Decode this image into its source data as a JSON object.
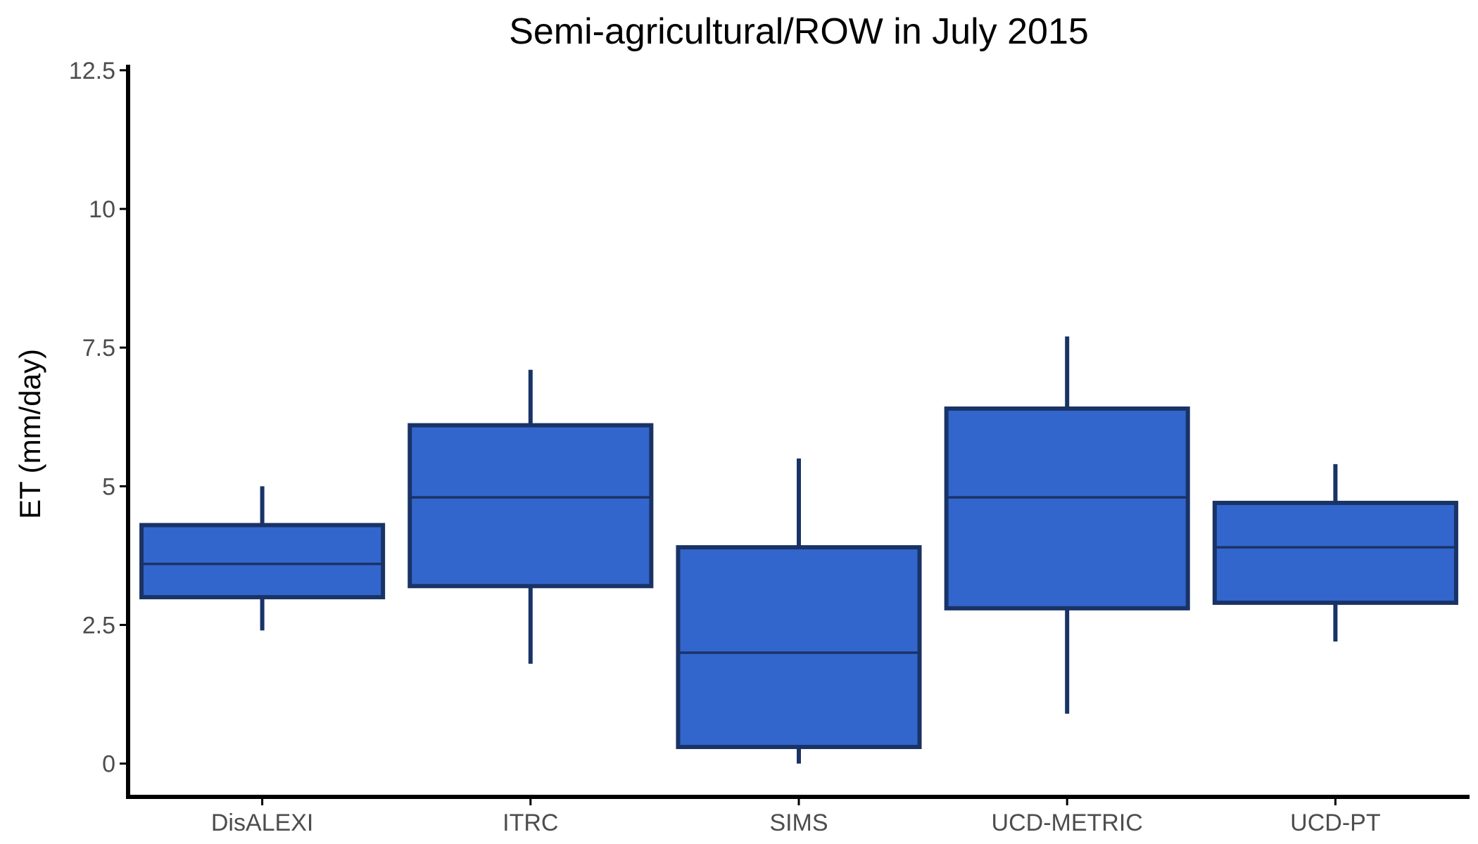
{
  "chart_data": {
    "type": "boxplot",
    "title": "Semi-agricultural/ROW in July 2015",
    "xlabel": "",
    "ylabel": "ET (mm/day)",
    "ylim": [
      -0.6,
      12.6
    ],
    "yticks": [
      0,
      2.5,
      5,
      7.5,
      10,
      12.5
    ],
    "ytick_labels": [
      "0",
      "2.5",
      "5",
      "7.5",
      "10",
      "12.5"
    ],
    "categories": [
      "DisALEXI",
      "ITRC",
      "SIMS",
      "UCD-METRIC",
      "UCD-PT"
    ],
    "boxes": [
      {
        "category": "DisALEXI",
        "whisker_low": 2.4,
        "q1": 3.0,
        "median": 3.6,
        "q3": 4.3,
        "whisker_high": 5.0
      },
      {
        "category": "ITRC",
        "whisker_low": 1.8,
        "q1": 3.2,
        "median": 4.8,
        "q3": 6.1,
        "whisker_high": 7.1
      },
      {
        "category": "SIMS",
        "whisker_low": 0.0,
        "q1": 0.3,
        "median": 2.0,
        "q3": 3.9,
        "whisker_high": 5.5
      },
      {
        "category": "UCD-METRIC",
        "whisker_low": 0.9,
        "q1": 2.8,
        "median": 4.8,
        "q3": 6.4,
        "whisker_high": 7.7
      },
      {
        "category": "UCD-PT",
        "whisker_low": 2.2,
        "q1": 2.9,
        "median": 3.9,
        "q3": 4.7,
        "whisker_high": 5.4
      }
    ],
    "grid": false,
    "legend": "none",
    "colors": {
      "box_fill": "#3366cc",
      "box_outline": "#1a3366",
      "axis": "#000000",
      "tick_label": "#4d4d4d"
    }
  }
}
